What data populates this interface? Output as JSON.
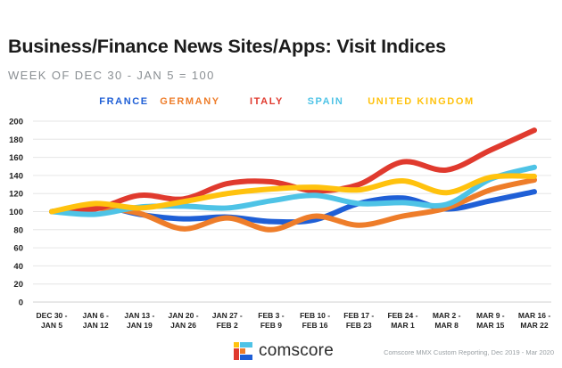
{
  "header": {
    "title": "Business/Finance News Sites/Apps: Visit Indices",
    "subtitle": "WEEK OF DEC 30 - JAN 5 = 100"
  },
  "footer": {
    "brand": "comscore",
    "note": "Comscore MMX Custom Reporting, Dec 2019 - Mar 2020"
  },
  "chart_data": {
    "type": "line",
    "title": "Business/Finance News Sites/Apps: Visit Indices",
    "subtitle": "WEEK OF DEC 30 - JAN 5 = 100",
    "categories": [
      [
        "DEC 30 -",
        "JAN 5"
      ],
      [
        "JAN 6 -",
        "JAN 12"
      ],
      [
        "JAN 13 -",
        "JAN 19"
      ],
      [
        "JAN 20 -",
        "JAN 26"
      ],
      [
        "JAN 27 -",
        "FEB 2"
      ],
      [
        "FEB 3 -",
        "FEB 9"
      ],
      [
        "FEB 10 -",
        "FEB 16"
      ],
      [
        "FEB 17 -",
        "FEB 23"
      ],
      [
        "FEB 24 -",
        "MAR 1"
      ],
      [
        "MAR 2 -",
        "MAR 8"
      ],
      [
        "MAR 9 -",
        "MAR 15"
      ],
      [
        "MAR 16 -",
        "MAR 22"
      ]
    ],
    "ylim": [
      0,
      200
    ],
    "yticks": [
      0,
      20,
      40,
      60,
      80,
      100,
      120,
      140,
      160,
      180,
      200
    ],
    "grid": true,
    "legend_position": "top",
    "series": [
      {
        "name": "FRANCE",
        "color": "#1f5fd6",
        "values": [
          100,
          107,
          97,
          92,
          94,
          89,
          91,
          109,
          115,
          103,
          112,
          122
        ]
      },
      {
        "name": "GERMANY",
        "color": "#ee7d2a",
        "values": [
          100,
          104,
          98,
          81,
          93,
          80,
          95,
          85,
          95,
          104,
          124,
          135
        ]
      },
      {
        "name": "ITALY",
        "color": "#e03a2e",
        "values": [
          100,
          103,
          118,
          114,
          131,
          133,
          123,
          130,
          155,
          146,
          168,
          190
        ]
      },
      {
        "name": "SPAIN",
        "color": "#4ec3e6",
        "values": [
          100,
          97,
          105,
          106,
          104,
          112,
          118,
          109,
          110,
          108,
          136,
          149
        ]
      },
      {
        "name": "UNITED KINGDOM",
        "color": "#ffc20e",
        "values": [
          100,
          109,
          104,
          111,
          120,
          125,
          127,
          124,
          134,
          121,
          138,
          139
        ]
      }
    ]
  }
}
